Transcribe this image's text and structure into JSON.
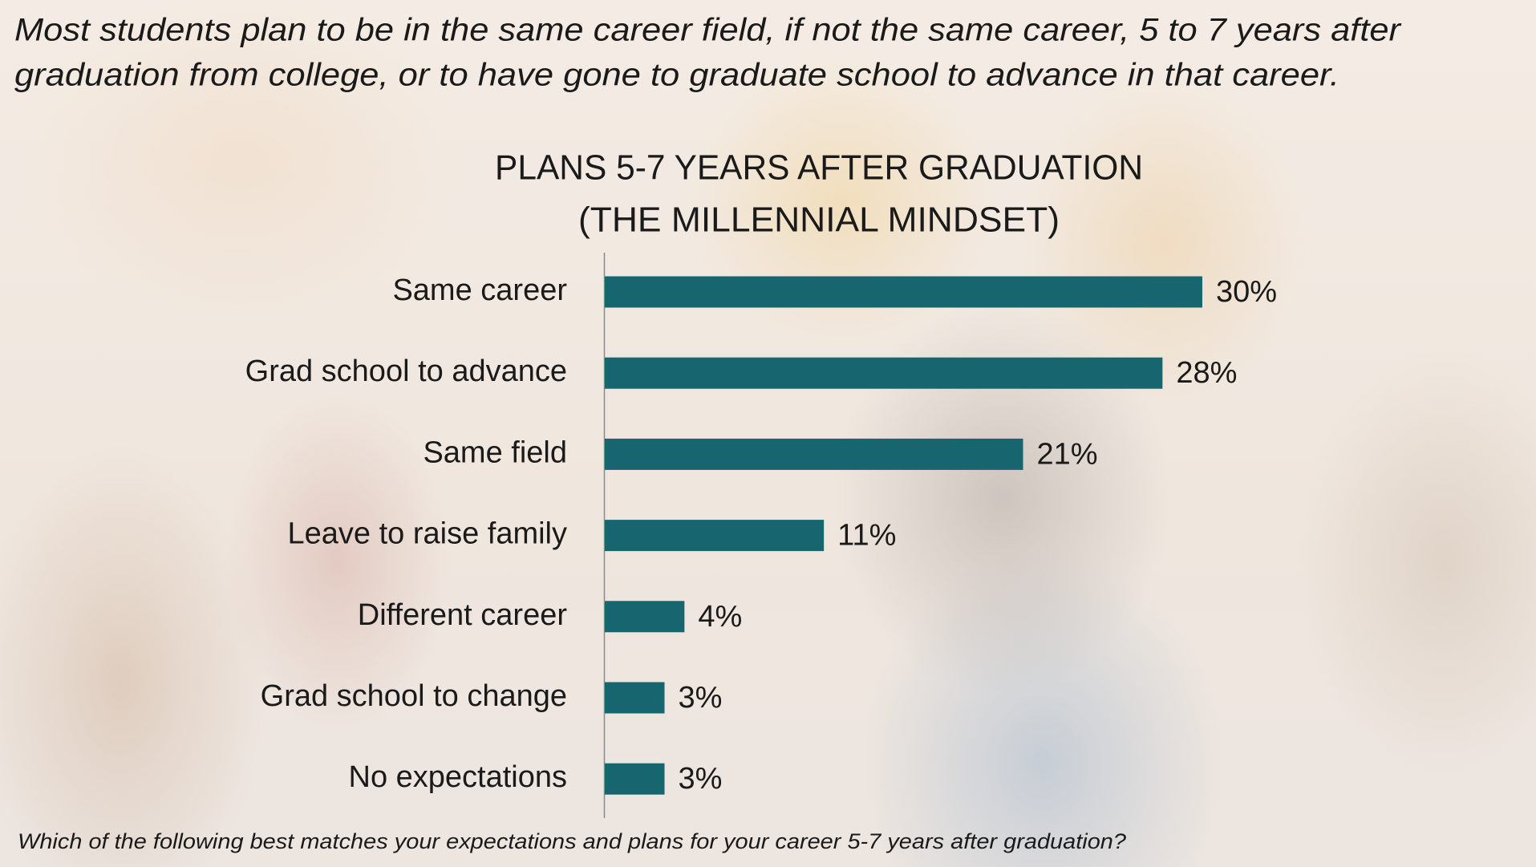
{
  "page": {
    "headline": [
      "Most students plan to be in the same career field, if not the same career, 5 to 7 years after",
      "graduation from college, or to have gone to graduate school to advance in that career."
    ],
    "question": "Which of the following best matches your expectations and plans for your career 5-7 years after graduation?"
  },
  "chart_data": {
    "type": "bar",
    "title": "PLANS 5-7 YEARS AFTER GRADUATION",
    "subtitle": "(THE MILLENNIAL MINDSET)",
    "categories": [
      "Same career",
      "Grad school to advance",
      "Same field",
      "Leave to raise family",
      "Different career",
      "Grad school to change",
      "No expectations"
    ],
    "values": [
      30,
      28,
      21,
      11,
      4,
      3,
      3
    ],
    "value_labels": [
      "30%",
      "28%",
      "21%",
      "11%",
      "4%",
      "3%",
      "3%"
    ],
    "color": "#17666f"
  }
}
